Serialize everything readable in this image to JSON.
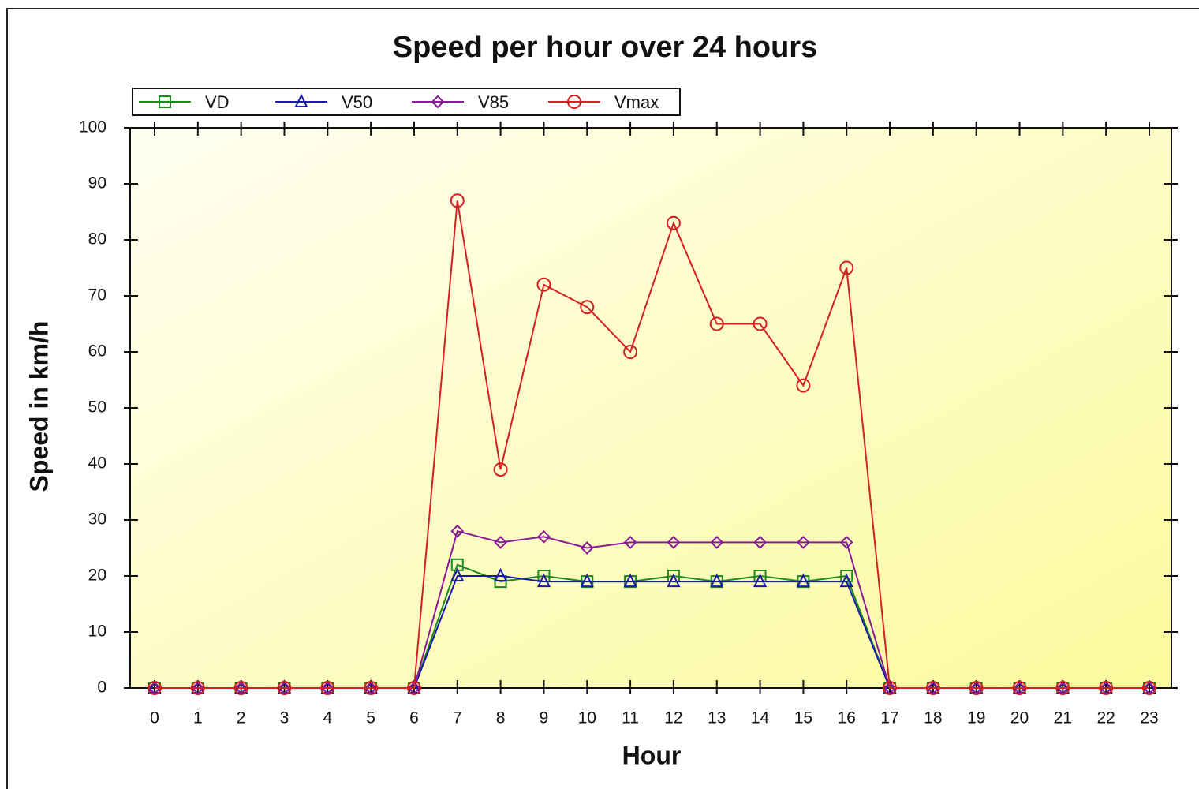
{
  "chart_data": {
    "type": "line",
    "title": "Speed per hour over 24 hours",
    "x_label": "Hour",
    "y_label": "Speed in km/h",
    "categories": [
      "0",
      "1",
      "2",
      "3",
      "4",
      "5",
      "6",
      "7",
      "8",
      "9",
      "10",
      "11",
      "12",
      "13",
      "14",
      "15",
      "16",
      "17",
      "18",
      "19",
      "20",
      "21",
      "22",
      "23"
    ],
    "ylim": [
      0,
      100
    ],
    "yticks": [
      0,
      10,
      20,
      30,
      40,
      50,
      60,
      70,
      80,
      90,
      100
    ],
    "legend": "top-left",
    "series": [
      {
        "name": "VD",
        "color": "#1a8a1a",
        "marker": "square",
        "values": [
          0,
          0,
          0,
          0,
          0,
          0,
          0,
          22,
          19,
          20,
          19,
          19,
          20,
          19,
          20,
          19,
          20,
          0,
          0,
          0,
          0,
          0,
          0,
          0
        ]
      },
      {
        "name": "V50",
        "color": "#1a1aa8",
        "marker": "triangle",
        "values": [
          0,
          0,
          0,
          0,
          0,
          0,
          0,
          20,
          20,
          19,
          19,
          19,
          19,
          19,
          19,
          19,
          19,
          0,
          0,
          0,
          0,
          0,
          0,
          0
        ]
      },
      {
        "name": "V85",
        "color": "#8a1a9a",
        "marker": "diamond",
        "values": [
          0,
          0,
          0,
          0,
          0,
          0,
          0,
          28,
          26,
          27,
          25,
          26,
          26,
          26,
          26,
          26,
          26,
          0,
          0,
          0,
          0,
          0,
          0,
          0
        ]
      },
      {
        "name": "Vmax",
        "color": "#d42020",
        "marker": "circle",
        "values": [
          0,
          0,
          0,
          0,
          0,
          0,
          0,
          87,
          39,
          72,
          68,
          60,
          83,
          65,
          65,
          54,
          75,
          0,
          0,
          0,
          0,
          0,
          0,
          0
        ]
      }
    ]
  }
}
